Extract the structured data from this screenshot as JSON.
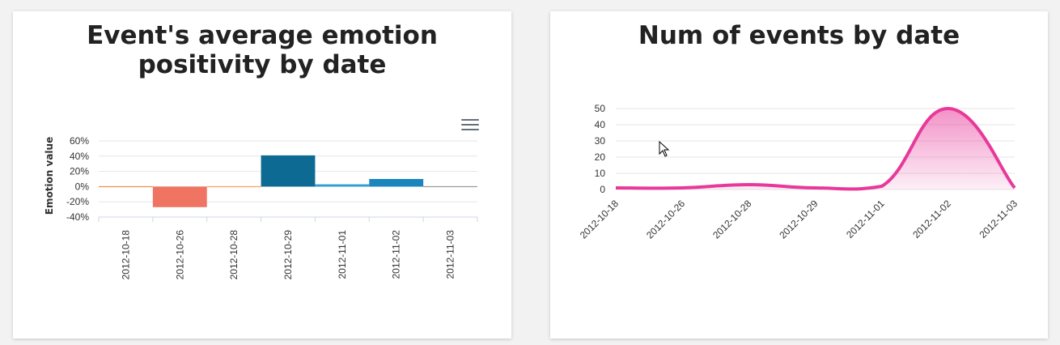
{
  "chart_data": [
    {
      "type": "bar",
      "title": "Event's average emotion positivity by date",
      "ylabel": "Emotion value",
      "xlabel": "",
      "categories": [
        "2012-10-18",
        "2012-10-26",
        "2012-10-28",
        "2012-10-29",
        "2012-11-01",
        "2012-11-02",
        "2012-11-03"
      ],
      "values": [
        0,
        -27,
        0,
        41,
        3,
        10,
        0
      ],
      "bar_colors": [
        "#f28f43",
        "#f07462",
        "#f7a35c",
        "#0d6a93",
        "#2f9fd8",
        "#1a86bd",
        "#999999"
      ],
      "ylim": [
        -40,
        60
      ],
      "yticks": [
        60,
        40,
        20,
        0,
        -20,
        -40
      ],
      "ytick_labels": [
        "60%",
        "40%",
        "20%",
        "0%",
        "-20%",
        "-40%"
      ],
      "grid": true,
      "legend": "none"
    },
    {
      "type": "area",
      "title": "Num of events by date",
      "xlabel": "",
      "ylabel": "",
      "categories": [
        "2012-10-18",
        "2012-10-26",
        "2012-10-28",
        "2012-10-29",
        "2012-11-01",
        "2012-11-02",
        "2012-11-03"
      ],
      "values": [
        1,
        1,
        3,
        1,
        2,
        50,
        1
      ],
      "line_color": "#e8399a",
      "ylim": [
        0,
        50
      ],
      "yticks": [
        50,
        40,
        30,
        20,
        10,
        0
      ],
      "ytick_labels": [
        "50",
        "40",
        "30",
        "20",
        "10",
        "0"
      ],
      "grid": true,
      "legend": "none"
    }
  ]
}
